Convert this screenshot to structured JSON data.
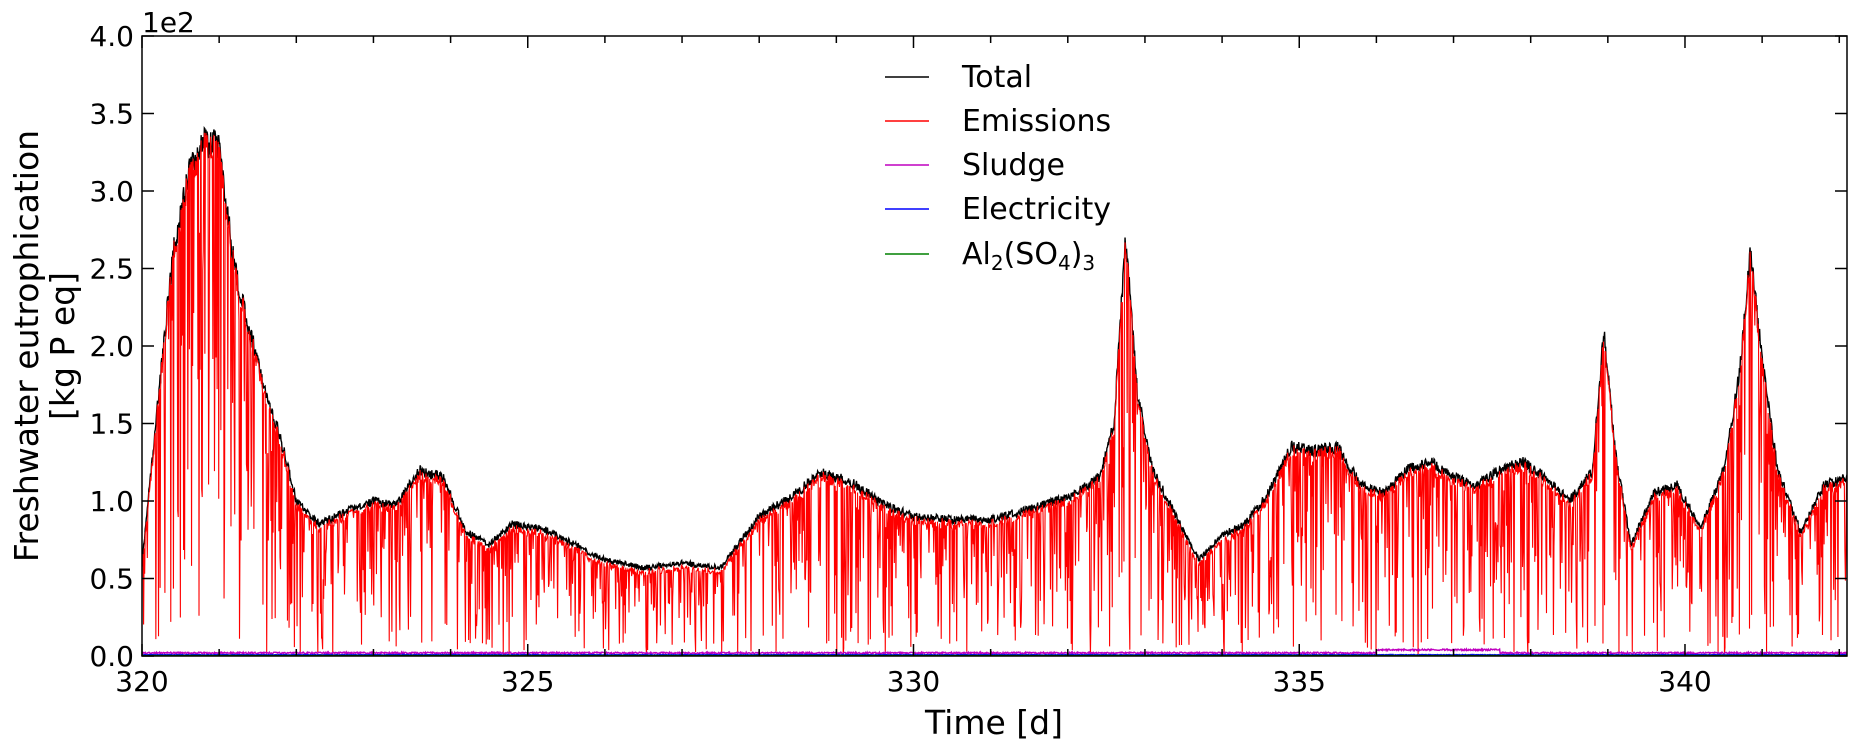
{
  "chart_data": {
    "type": "line",
    "title": "",
    "xlabel": "Time [d]",
    "ylabel_line1": "Freshwater eutrophication",
    "ylabel_line2": "[kg P eq]",
    "y_offset_text": "1e2",
    "xlim": [
      320,
      342.1
    ],
    "ylim": [
      0,
      4.0
    ],
    "x_ticks": [
      320,
      325,
      330,
      335,
      340
    ],
    "x_tick_labels": [
      "320",
      "325",
      "330",
      "335",
      "340"
    ],
    "y_ticks": [
      0.0,
      0.5,
      1.0,
      1.5,
      2.0,
      2.5,
      3.0,
      3.5,
      4.0
    ],
    "y_tick_labels": [
      "0.0",
      "0.5",
      "1.0",
      "1.5",
      "2.0",
      "2.5",
      "3.0",
      "3.5",
      "4.0"
    ],
    "grid": false,
    "legend_position": "top-center",
    "series": [
      {
        "name": "Total",
        "color": "#000000"
      },
      {
        "name": "Emissions",
        "color": "#ff0000"
      },
      {
        "name": "Sludge",
        "color": "#bf00bf"
      },
      {
        "name": "Electricity",
        "color": "#0000ff"
      },
      {
        "name": "Al2(SO4)3",
        "color": "#008000"
      }
    ],
    "legend_al": {
      "base1": "Al",
      "sub1": "2",
      "base2": "(SO",
      "sub2": "4",
      "base3": ")",
      "sub3": "3"
    },
    "envelope": {
      "x": [
        320.0,
        320.2,
        320.4,
        320.6,
        320.8,
        321.0,
        321.2,
        321.4,
        321.6,
        321.8,
        322.0,
        322.3,
        322.6,
        323.0,
        323.3,
        323.6,
        323.9,
        324.2,
        324.5,
        324.8,
        325.2,
        325.6,
        326.0,
        326.5,
        327.0,
        327.5,
        328.0,
        328.4,
        328.8,
        329.2,
        329.6,
        330.0,
        330.5,
        331.0,
        331.5,
        332.0,
        332.4,
        332.6,
        332.75,
        332.9,
        333.1,
        333.4,
        333.7,
        334.0,
        334.3,
        334.6,
        334.9,
        335.2,
        335.5,
        335.8,
        336.1,
        336.4,
        336.7,
        337.0,
        337.3,
        337.6,
        337.9,
        338.2,
        338.5,
        338.8,
        338.95,
        339.1,
        339.3,
        339.6,
        339.9,
        340.2,
        340.5,
        340.7,
        340.85,
        341.0,
        341.2,
        341.5,
        341.8,
        342.1
      ],
      "y": [
        0.6,
        1.6,
        2.6,
        3.1,
        3.32,
        3.3,
        2.5,
        2.1,
        1.7,
        1.4,
        1.0,
        0.85,
        0.92,
        1.0,
        0.98,
        1.2,
        1.15,
        0.8,
        0.72,
        0.85,
        0.82,
        0.72,
        0.62,
        0.57,
        0.6,
        0.57,
        0.9,
        1.02,
        1.18,
        1.12,
        0.98,
        0.9,
        0.88,
        0.88,
        0.95,
        1.02,
        1.15,
        1.5,
        2.7,
        1.7,
        1.2,
        0.9,
        0.62,
        0.78,
        0.85,
        1.05,
        1.35,
        1.32,
        1.35,
        1.1,
        1.05,
        1.2,
        1.25,
        1.15,
        1.1,
        1.2,
        1.25,
        1.15,
        1.0,
        1.2,
        2.1,
        1.3,
        0.72,
        1.05,
        1.1,
        0.82,
        1.2,
        1.8,
        2.6,
        1.9,
        1.2,
        0.8,
        1.1,
        1.15
      ]
    }
  }
}
